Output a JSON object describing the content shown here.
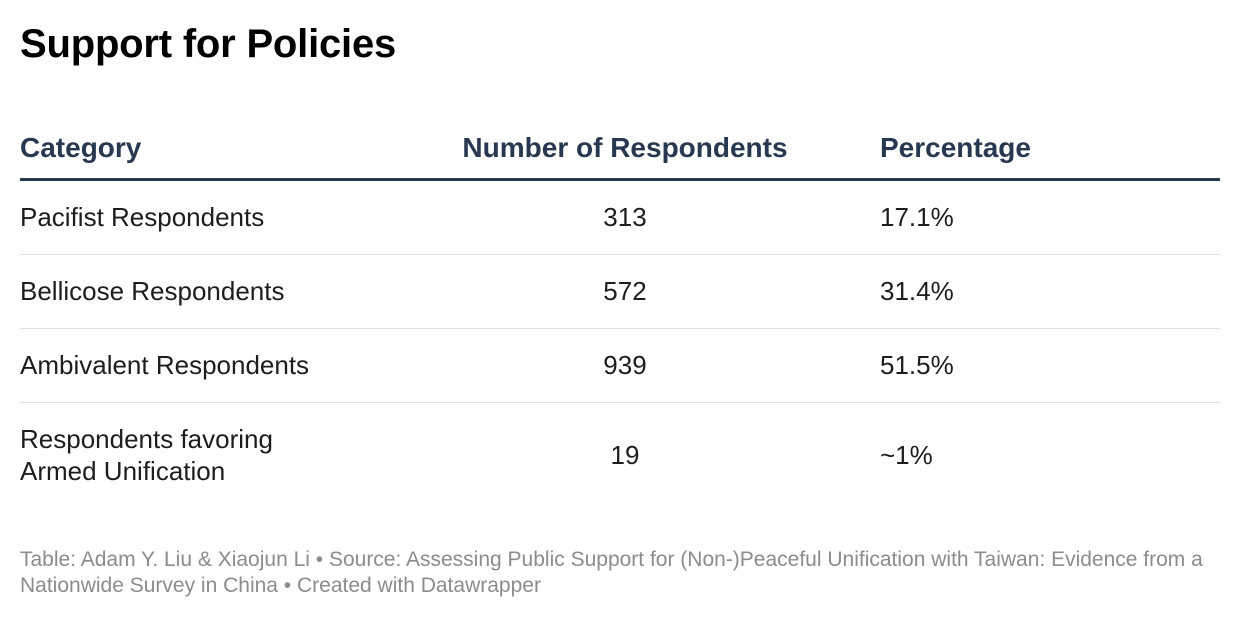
{
  "chart_data": {
    "type": "table",
    "title": "Support for Policies",
    "columns": [
      "Category",
      "Number of Respondents",
      "Percentage"
    ],
    "rows": [
      {
        "category": "Pacifist Respondents",
        "respondents": "313",
        "percentage": "17.1%"
      },
      {
        "category": "Bellicose Respondents",
        "respondents": "572",
        "percentage": "31.4%"
      },
      {
        "category": "Ambivalent Respondents",
        "respondents": "939",
        "percentage": "51.5%"
      },
      {
        "category": "Respondents favoring Armed Unification",
        "respondents": "19",
        "percentage": "~1%"
      }
    ],
    "footer": "Table: Adam Y. Liu & Xiaojun Li • Source: Assessing Public Support for (Non-)Peaceful Unification with Taiwan: Evidence from a Nationwide Survey in China • Created with Datawrapper"
  },
  "colors": {
    "header_text": "#283850",
    "header_rule": "#283850",
    "row_divider": "#e1e1e1",
    "body_text": "#1d1d1d",
    "footer_text": "#8c8c8c"
  }
}
